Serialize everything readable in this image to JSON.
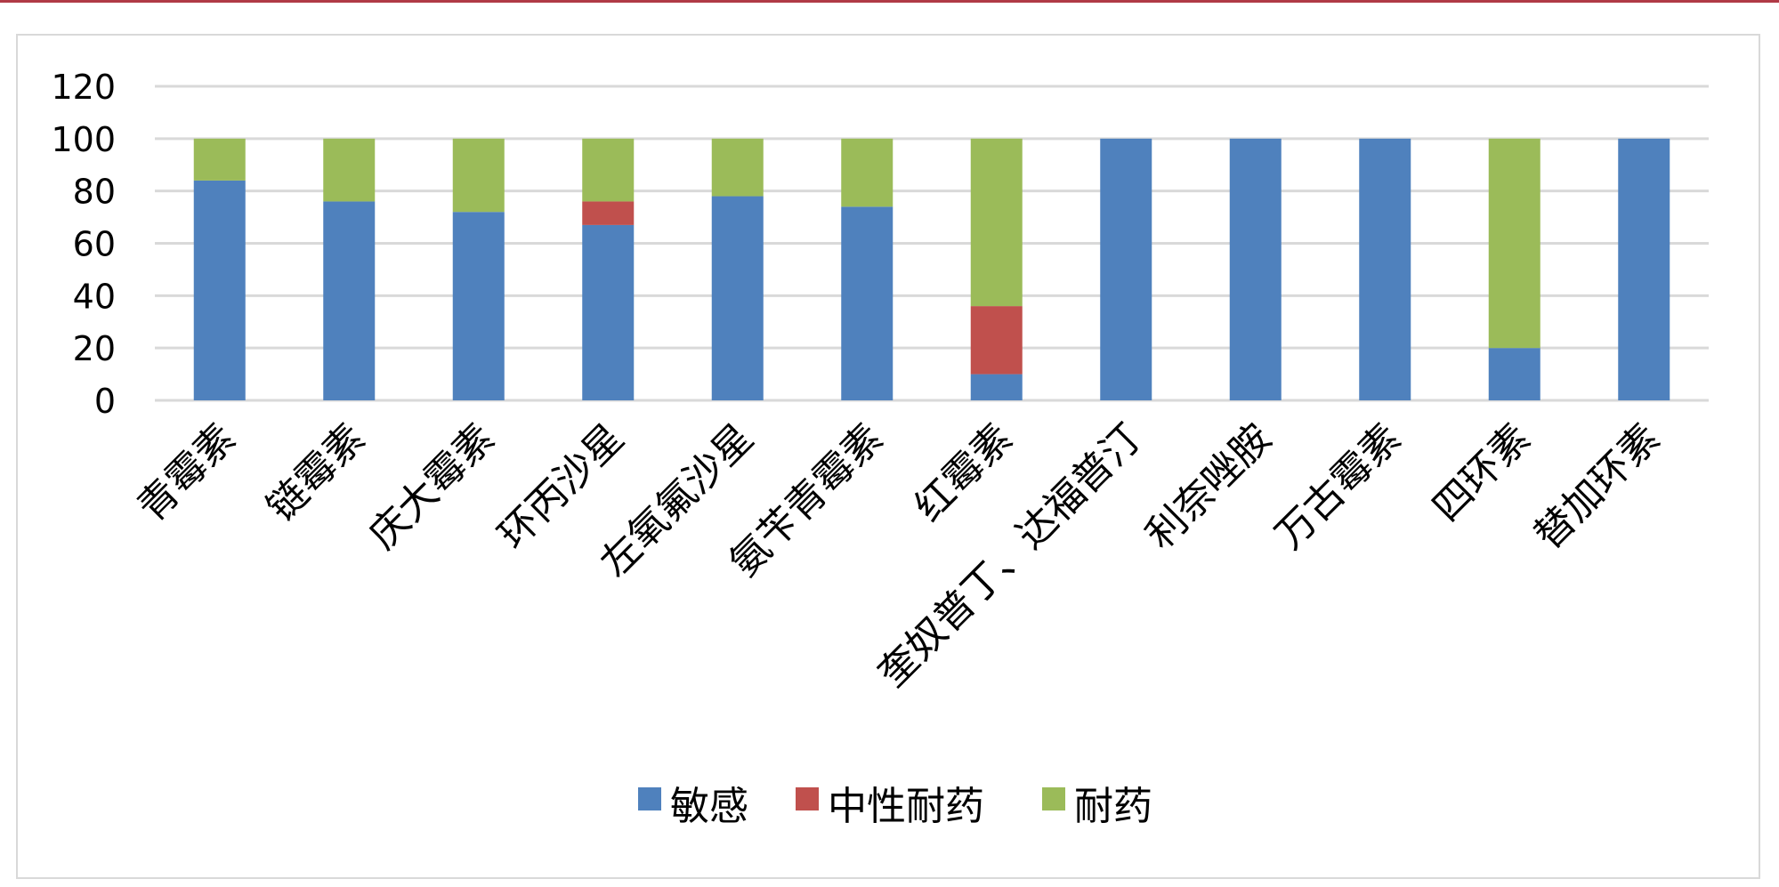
{
  "chart_data": {
    "type": "bar",
    "stacked": true,
    "categories": [
      "青霉素",
      "链霉素",
      "庆大霉素",
      "环丙沙星",
      "左氧氟沙星",
      "氨苄青霉素",
      "红霉素",
      "奎奴普丁、达福普汀",
      "利奈唑胺",
      "万古霉素",
      "四环素",
      "替加环素"
    ],
    "series": [
      {
        "name": "敏感",
        "color": "#4f81bd",
        "values": [
          84,
          76,
          72,
          67,
          78,
          74,
          10,
          100,
          100,
          100,
          20,
          100
        ]
      },
      {
        "name": "中性耐药",
        "color": "#c0504d",
        "values": [
          0,
          0,
          0,
          9,
          0,
          0,
          26,
          0,
          0,
          0,
          0,
          0
        ]
      },
      {
        "name": "耐药",
        "color": "#9bbb59",
        "values": [
          16,
          24,
          28,
          24,
          22,
          26,
          64,
          0,
          0,
          0,
          80,
          0
        ]
      }
    ],
    "yticks": [
      "0",
      "20",
      "40",
      "60",
      "80",
      "100",
      "120"
    ],
    "ylim": [
      0,
      120
    ],
    "grid": true,
    "legend_position": "bottom"
  }
}
